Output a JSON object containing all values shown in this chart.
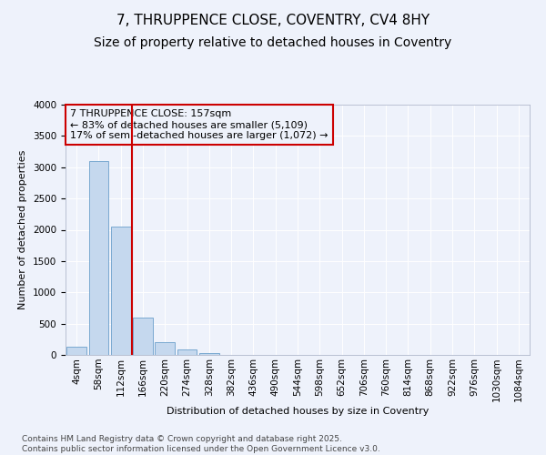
{
  "title": "7, THRUPPENCE CLOSE, COVENTRY, CV4 8HY",
  "subtitle": "Size of property relative to detached houses in Coventry",
  "xlabel": "Distribution of detached houses by size in Coventry",
  "ylabel": "Number of detached properties",
  "footer_line1": "Contains HM Land Registry data © Crown copyright and database right 2025.",
  "footer_line2": "Contains public sector information licensed under the Open Government Licence v3.0.",
  "annotation_line1": "7 THRUPPENCE CLOSE: 157sqm",
  "annotation_line2": "← 83% of detached houses are smaller (5,109)",
  "annotation_line3": "17% of semi-detached houses are larger (1,072) →",
  "categories": [
    "4sqm",
    "58sqm",
    "112sqm",
    "166sqm",
    "220sqm",
    "274sqm",
    "328sqm",
    "382sqm",
    "436sqm",
    "490sqm",
    "544sqm",
    "598sqm",
    "652sqm",
    "706sqm",
    "760sqm",
    "814sqm",
    "868sqm",
    "922sqm",
    "976sqm",
    "1030sqm",
    "1084sqm"
  ],
  "bar_values": [
    130,
    3100,
    2050,
    590,
    200,
    90,
    30,
    0,
    0,
    0,
    0,
    0,
    0,
    0,
    0,
    0,
    0,
    0,
    0,
    0,
    0
  ],
  "bar_color": "#c5d8ee",
  "bar_edgecolor": "#6a9fcb",
  "red_line_x": 2.5,
  "red_line_color": "#cc0000",
  "background_color": "#eef2fb",
  "grid_color": "#ffffff",
  "ylim": [
    0,
    4000
  ],
  "yticks": [
    0,
    500,
    1000,
    1500,
    2000,
    2500,
    3000,
    3500,
    4000
  ],
  "title_fontsize": 11,
  "subtitle_fontsize": 10,
  "axis_label_fontsize": 8,
  "tick_fontsize": 7.5,
  "annotation_fontsize": 8,
  "footer_fontsize": 6.5
}
